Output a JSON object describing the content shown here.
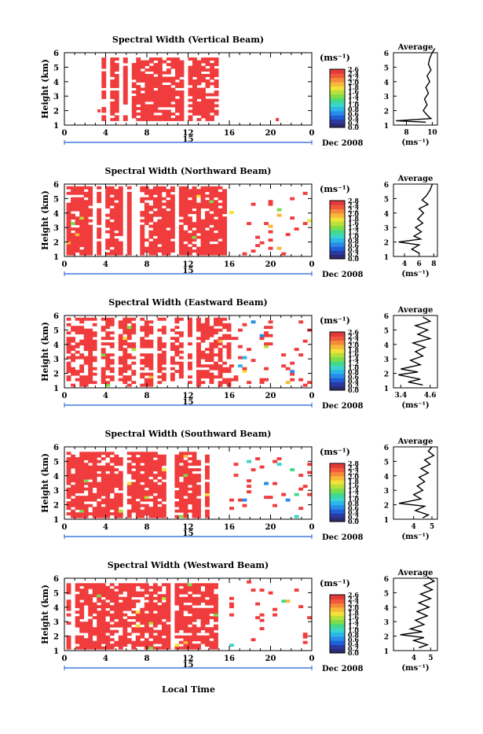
{
  "figure": {
    "xlabel": "Local Time",
    "ylabel": "Height (km)",
    "date_label": "Dec 2008",
    "date_marker": "15",
    "x_ticks": [
      "0",
      "4",
      "8",
      "12",
      "16",
      "20",
      "0"
    ],
    "y_ticks": [
      "1",
      "2",
      "3",
      "4",
      "5",
      "6"
    ],
    "colorbar_unit": "(ms⁻¹)",
    "colors": {
      "red": "#f03c3c",
      "blue": "#1f5fd8",
      "axis": "#000000"
    }
  },
  "chart_data": [
    {
      "type": "heatmap",
      "title": "Spectral Width (Vertical Beam)",
      "xlim": [
        0,
        24
      ],
      "ylim": [
        1,
        6
      ],
      "colorbar": {
        "ticks": [
          "2.6",
          "2.4",
          "2.2",
          "2.0",
          "1.8",
          "1.6",
          "1.4",
          "1.2",
          "1.0",
          "0.8",
          "0.6",
          "0.4",
          "0.2",
          "0.0"
        ]
      },
      "profile": {
        "title": "Average",
        "xlabel": "(ms⁻¹)",
        "xticks": [
          "8",
          "10"
        ],
        "xlim": [
          7,
          10.4
        ],
        "values": [
          [
            10.2,
            6.3
          ],
          [
            10.0,
            6.0
          ],
          [
            9.8,
            5.6
          ],
          [
            9.7,
            5.2
          ],
          [
            9.9,
            4.8
          ],
          [
            9.6,
            4.4
          ],
          [
            9.8,
            4.0
          ],
          [
            9.5,
            3.6
          ],
          [
            9.7,
            3.2
          ],
          [
            9.4,
            2.8
          ],
          [
            9.6,
            2.4
          ],
          [
            9.3,
            2.0
          ],
          [
            9.7,
            1.6
          ],
          [
            9.9,
            1.45
          ],
          [
            7.2,
            1.3
          ],
          [
            9.5,
            1.2
          ]
        ]
      }
    },
    {
      "type": "heatmap",
      "title": "Spectral Width (Northward Beam)",
      "xlim": [
        0,
        24
      ],
      "ylim": [
        1,
        6
      ],
      "colorbar": {
        "ticks": [
          "2.8",
          "2.4",
          "2.2",
          "2.0",
          "1.8",
          "1.6",
          "1.4",
          "1.2",
          "1.0",
          "0.8",
          "0.6",
          "0.4",
          "0.2",
          "0.0"
        ]
      },
      "profile": {
        "title": "Average",
        "xlabel": "(ms⁻¹)",
        "xticks": [
          "4",
          "6",
          "8"
        ],
        "xlim": [
          2.5,
          8.5
        ],
        "values": [
          [
            7.8,
            6.0
          ],
          [
            7.5,
            5.6
          ],
          [
            7.0,
            5.2
          ],
          [
            6.4,
            4.9
          ],
          [
            7.2,
            4.6
          ],
          [
            6.0,
            4.3
          ],
          [
            6.6,
            4.0
          ],
          [
            5.8,
            3.6
          ],
          [
            6.5,
            3.3
          ],
          [
            5.5,
            3.0
          ],
          [
            6.3,
            2.7
          ],
          [
            5.3,
            2.4
          ],
          [
            6.2,
            2.2
          ],
          [
            3.2,
            2.0
          ],
          [
            6.0,
            1.8
          ],
          [
            5.0,
            1.5
          ],
          [
            6.1,
            1.2
          ]
        ]
      }
    },
    {
      "type": "heatmap",
      "title": "Spectral Width (Eastward Beam)",
      "xlim": [
        0,
        24
      ],
      "ylim": [
        1,
        6
      ],
      "colorbar": {
        "ticks": [
          "2.6",
          "2.4",
          "2.2",
          "2.0",
          "1.8",
          "1.6",
          "1.4",
          "1.2",
          "1.0",
          "0.8",
          "0.6",
          "0.4",
          "0.2",
          "0.0"
        ]
      },
      "profile": {
        "title": "Average",
        "xlabel": "(ms⁻¹)",
        "xticks": [
          "3.4",
          "4.6"
        ],
        "xlim": [
          3.1,
          4.9
        ],
        "values": [
          [
            4.3,
            5.9
          ],
          [
            4.6,
            5.6
          ],
          [
            4.0,
            5.3
          ],
          [
            4.5,
            5.0
          ],
          [
            4.1,
            4.7
          ],
          [
            4.6,
            4.4
          ],
          [
            3.9,
            4.1
          ],
          [
            4.4,
            3.8
          ],
          [
            4.0,
            3.5
          ],
          [
            4.3,
            3.2
          ],
          [
            3.8,
            2.9
          ],
          [
            4.2,
            2.6
          ],
          [
            3.4,
            2.3
          ],
          [
            4.1,
            2.1
          ],
          [
            3.3,
            1.9
          ],
          [
            4.2,
            1.6
          ],
          [
            3.7,
            1.4
          ],
          [
            4.3,
            1.2
          ]
        ]
      }
    },
    {
      "type": "heatmap",
      "title": "Spectral Width (Southward Beam)",
      "xlim": [
        0,
        24
      ],
      "ylim": [
        1,
        6
      ],
      "colorbar": {
        "ticks": [
          "2.8",
          "2.4",
          "2.2",
          "2.0",
          "1.8",
          "1.6",
          "1.4",
          "1.2",
          "1.0",
          "0.8",
          "0.6",
          "0.4",
          "0.2",
          "0.0"
        ]
      },
      "profile": {
        "title": "Average",
        "xlabel": "(ms⁻¹)",
        "xticks": [
          "4",
          "5"
        ],
        "xlim": [
          2.9,
          5.3
        ],
        "values": [
          [
            5.0,
            6.0
          ],
          [
            4.8,
            5.7
          ],
          [
            5.1,
            5.4
          ],
          [
            4.6,
            5.1
          ],
          [
            4.9,
            4.8
          ],
          [
            4.4,
            4.5
          ],
          [
            4.8,
            4.2
          ],
          [
            4.3,
            3.9
          ],
          [
            4.6,
            3.6
          ],
          [
            4.2,
            3.3
          ],
          [
            4.5,
            3.0
          ],
          [
            4.0,
            2.7
          ],
          [
            4.4,
            2.4
          ],
          [
            3.2,
            2.1
          ],
          [
            4.6,
            1.9
          ],
          [
            4.1,
            1.6
          ],
          [
            4.8,
            1.3
          ],
          [
            4.5,
            1.1
          ]
        ]
      }
    },
    {
      "type": "heatmap",
      "title": "Spectral Width (Westward Beam)",
      "xlim": [
        0,
        24
      ],
      "ylim": [
        1,
        6
      ],
      "colorbar": {
        "ticks": [
          "2.6",
          "2.4",
          "2.2",
          "2.0",
          "1.8",
          "1.6",
          "1.4",
          "1.2",
          "1.0",
          "0.8",
          "0.6",
          "0.4",
          "0.2",
          "0.0"
        ]
      },
      "profile": {
        "title": "Average",
        "xlabel": "(ms⁻¹)",
        "xticks": [
          "4",
          "5"
        ],
        "xlim": [
          2.8,
          5.4
        ],
        "values": [
          [
            4.8,
            6.1
          ],
          [
            5.2,
            5.8
          ],
          [
            4.6,
            5.5
          ],
          [
            5.1,
            5.2
          ],
          [
            4.4,
            4.9
          ],
          [
            5.0,
            4.6
          ],
          [
            4.3,
            4.3
          ],
          [
            4.9,
            4.0
          ],
          [
            4.2,
            3.7
          ],
          [
            4.8,
            3.4
          ],
          [
            4.1,
            3.1
          ],
          [
            4.6,
            2.8
          ],
          [
            3.8,
            2.5
          ],
          [
            4.5,
            2.3
          ],
          [
            3.2,
            2.1
          ],
          [
            4.6,
            1.9
          ],
          [
            4.0,
            1.7
          ],
          [
            4.8,
            1.4
          ],
          [
            4.3,
            1.2
          ]
        ]
      }
    }
  ]
}
